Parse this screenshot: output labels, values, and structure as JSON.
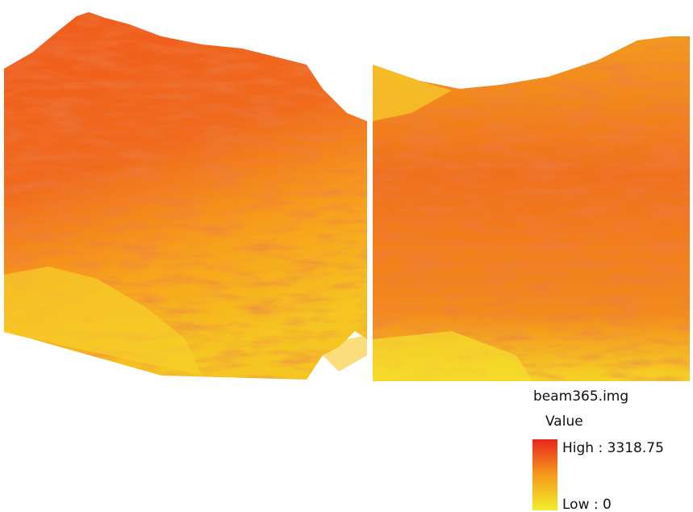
{
  "legend": {
    "title": "beam365.img",
    "field": "Value",
    "high": "High : 3318.75",
    "low": "Low : 0"
  }
}
